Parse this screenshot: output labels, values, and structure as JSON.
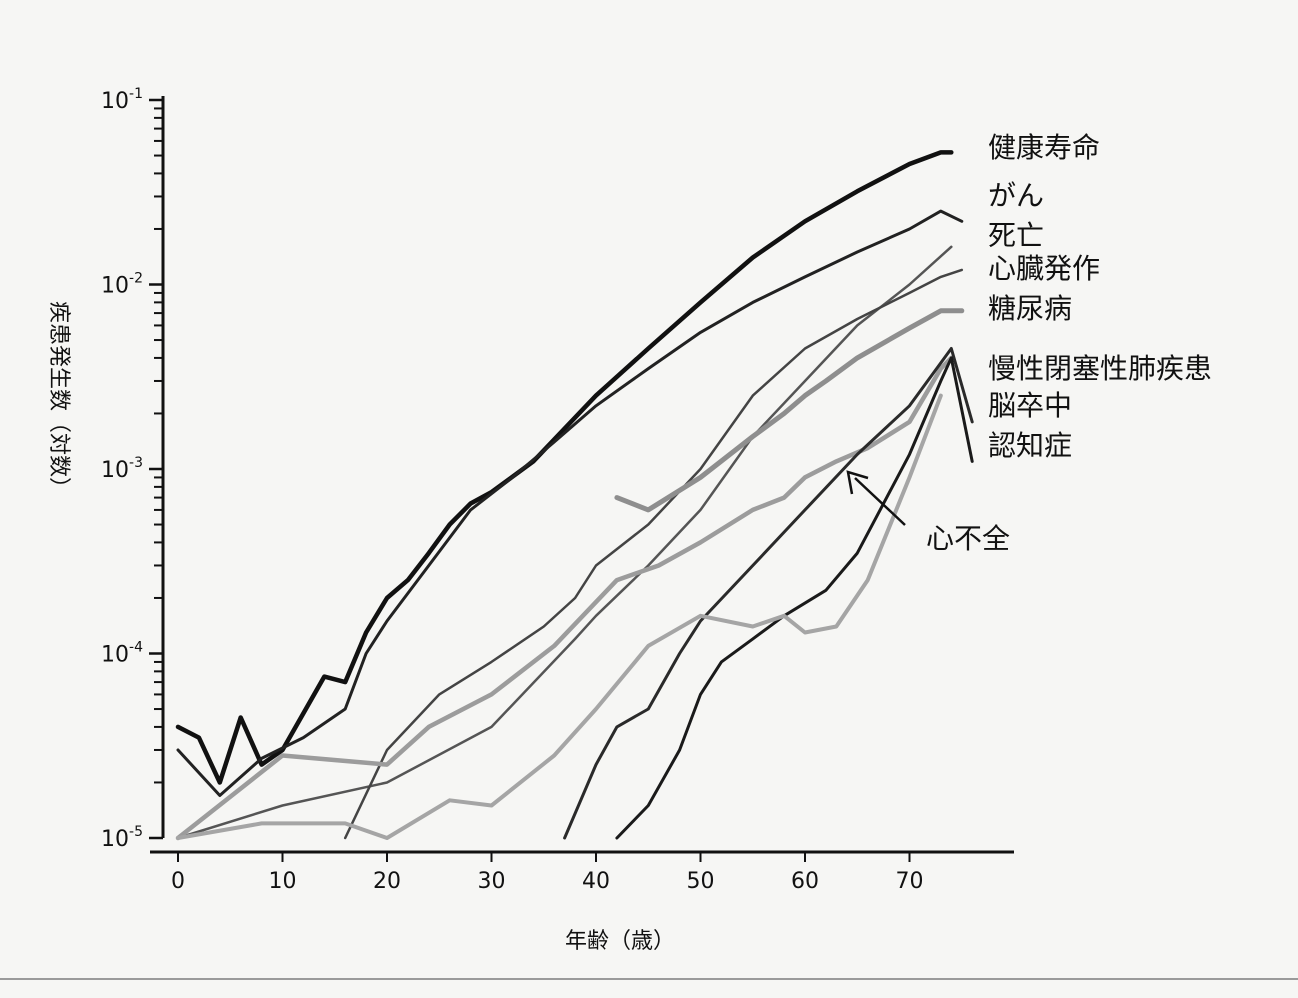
{
  "chart_data": {
    "type": "line",
    "xlabel": "年齢（歳）",
    "ylabel": "疾患発生数（対数）",
    "y_scale": "log",
    "xlim": [
      0,
      80
    ],
    "ylim": [
      1e-05,
      0.1
    ],
    "x_ticks": [
      0,
      10,
      20,
      30,
      40,
      50,
      60,
      70
    ],
    "y_ticks": [
      {
        "value": 0.1,
        "base": "10",
        "exp": "-1"
      },
      {
        "value": 0.01,
        "base": "10",
        "exp": "-2"
      },
      {
        "value": 0.001,
        "base": "10",
        "exp": "-3"
      },
      {
        "value": 0.0001,
        "base": "10",
        "exp": "-4"
      },
      {
        "value": 1e-05,
        "base": "10",
        "exp": "-5"
      }
    ],
    "series": [
      {
        "name": "健康寿命",
        "color": "#111111",
        "width": 4.5,
        "x": [
          0,
          2,
          4,
          6,
          8,
          10,
          14,
          16,
          18,
          20,
          22,
          24,
          26,
          28,
          30,
          34,
          40,
          45,
          50,
          55,
          60,
          65,
          70,
          73,
          74
        ],
        "y": [
          4e-05,
          3.5e-05,
          2e-05,
          4.5e-05,
          2.5e-05,
          3e-05,
          7.5e-05,
          7e-05,
          0.00013,
          0.0002,
          0.00025,
          0.00035,
          0.0005,
          0.00065,
          0.00075,
          0.0011,
          0.0025,
          0.0045,
          0.008,
          0.014,
          0.022,
          0.032,
          0.045,
          0.052,
          0.052
        ]
      },
      {
        "name": "がん",
        "color": "#222222",
        "width": 3,
        "x": [
          0,
          4,
          8,
          12,
          16,
          18,
          20,
          24,
          28,
          32,
          36,
          40,
          45,
          50,
          55,
          60,
          65,
          70,
          73,
          75
        ],
        "y": [
          3e-05,
          1.7e-05,
          2.7e-05,
          3.5e-05,
          5e-05,
          0.0001,
          0.00015,
          0.0003,
          0.0006,
          0.0009,
          0.0014,
          0.0022,
          0.0035,
          0.0055,
          0.008,
          0.011,
          0.015,
          0.02,
          0.025,
          0.022
        ]
      },
      {
        "name": "死亡",
        "color": "#555555",
        "width": 2.5,
        "x": [
          0,
          10,
          20,
          30,
          38,
          40,
          45,
          50,
          55,
          60,
          65,
          70,
          74
        ],
        "y": [
          1e-05,
          1.5e-05,
          2e-05,
          4e-05,
          0.00012,
          0.00016,
          0.0003,
          0.0006,
          0.0015,
          0.003,
          0.006,
          0.01,
          0.016
        ]
      },
      {
        "name": "心臓発作",
        "color": "#444444",
        "width": 2.5,
        "x": [
          16,
          20,
          25,
          30,
          35,
          38,
          40,
          45,
          50,
          55,
          60,
          65,
          70,
          73,
          75
        ],
        "y": [
          1e-05,
          3e-05,
          6e-05,
          9e-05,
          0.00014,
          0.0002,
          0.0003,
          0.0005,
          0.001,
          0.0025,
          0.0045,
          0.0065,
          0.009,
          0.011,
          0.012
        ]
      },
      {
        "name": "糖尿病",
        "color": "#8e8e8e",
        "width": 5,
        "x": [
          42,
          45,
          50,
          55,
          58,
          60,
          62,
          65,
          70,
          73,
          75
        ],
        "y": [
          0.0007,
          0.0006,
          0.0009,
          0.0015,
          0.002,
          0.0025,
          0.003,
          0.004,
          0.0058,
          0.0072,
          0.0072
        ]
      },
      {
        "name": "慢性閉塞性肺疾患",
        "color": "#9c9c9c",
        "width": 4.5,
        "x": [
          0,
          10,
          20,
          24,
          30,
          36,
          42,
          46,
          50,
          55,
          58,
          60,
          63,
          66,
          70,
          73,
          74
        ],
        "y": [
          1e-05,
          2.8e-05,
          2.5e-05,
          4e-05,
          6e-05,
          0.00011,
          0.00025,
          0.0003,
          0.0004,
          0.0006,
          0.0007,
          0.0009,
          0.0011,
          0.0013,
          0.0018,
          0.0035,
          0.004
        ]
      },
      {
        "name": "脳卒中",
        "color": "#2a2a2a",
        "width": 3,
        "x": [
          37,
          40,
          42,
          45,
          48,
          50,
          55,
          60,
          65,
          70,
          74,
          76
        ],
        "y": [
          1e-05,
          2.5e-05,
          4e-05,
          5e-05,
          0.0001,
          0.00015,
          0.0003,
          0.0006,
          0.0012,
          0.0022,
          0.0045,
          0.0018
        ]
      },
      {
        "name": "認知症",
        "color": "#1a1a1a",
        "width": 3,
        "x": [
          42,
          45,
          48,
          50,
          52,
          55,
          58,
          62,
          65,
          70,
          73,
          74,
          76
        ],
        "y": [
          1e-05,
          1.5e-05,
          3e-05,
          6e-05,
          9e-05,
          0.00012,
          0.00016,
          0.00022,
          0.00035,
          0.0012,
          0.003,
          0.004,
          0.0011
        ]
      },
      {
        "name": "心不全",
        "color": "#a5a5a5",
        "width": 4,
        "x": [
          0,
          8,
          16,
          20,
          26,
          30,
          36,
          40,
          45,
          50,
          55,
          58,
          60,
          63,
          66,
          70,
          73
        ],
        "y": [
          1e-05,
          1.2e-05,
          1.2e-05,
          1e-05,
          1.6e-05,
          1.5e-05,
          2.8e-05,
          5e-05,
          0.00011,
          0.00016,
          0.00014,
          0.00016,
          0.00013,
          0.00014,
          0.00025,
          0.0009,
          0.0025
        ]
      }
    ],
    "labels": [
      "健康寿命",
      "がん",
      "死亡",
      "心臓発作",
      "糖尿病",
      "慢性閉塞性肺疾患",
      "脳卒中",
      "認知症"
    ],
    "annotation": "心不全",
    "grid": false,
    "legend": "right (labels next to line ends)"
  }
}
